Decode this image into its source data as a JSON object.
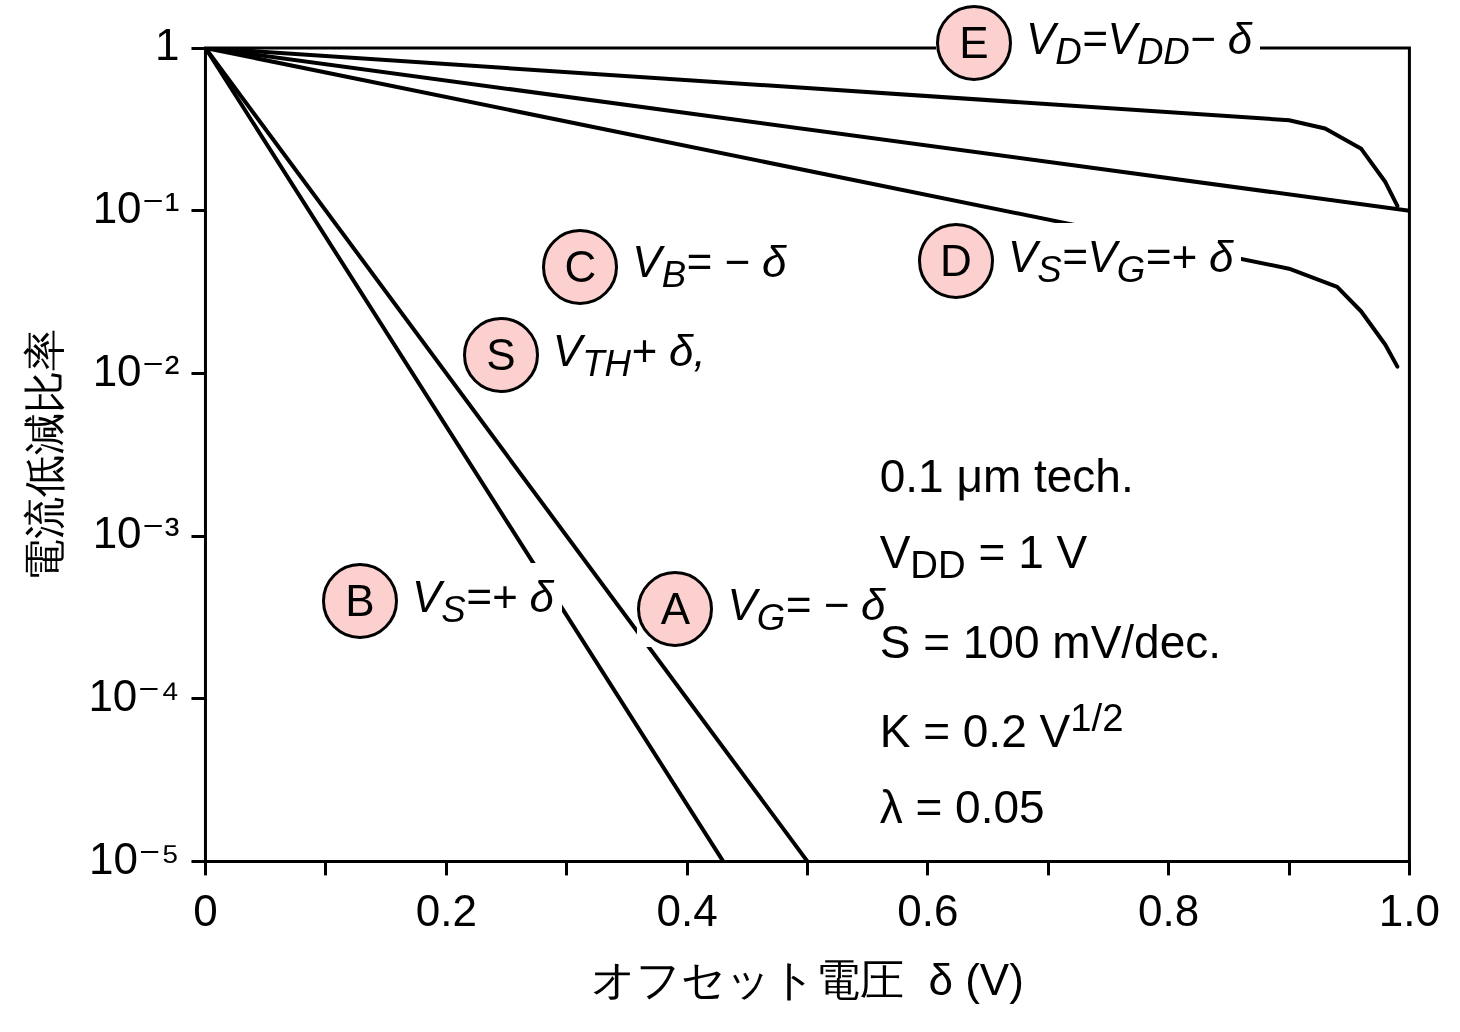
{
  "chart_data": {
    "type": "line",
    "xlabel": "オフセット電圧  δ (V)",
    "ylabel": "電流低減比率",
    "xlim": [
      0,
      1.0
    ],
    "ylim": [
      1e-05,
      1
    ],
    "log": "y",
    "grid": false,
    "legend": false,
    "marker": "none",
    "line_style": "solid",
    "xticks": [
      0,
      {
        "value": 0.1,
        "label": null
      },
      0.2,
      {
        "value": 0.3,
        "label": null
      },
      0.4,
      {
        "value": 0.5,
        "label": null
      },
      0.6,
      {
        "value": 0.7,
        "label": null
      },
      0.8,
      {
        "value": 0.9,
        "label": null
      },
      {
        "value": 1.0,
        "label": "1.0"
      }
    ],
    "yticks": [
      1,
      {
        "value": 0.1,
        "label": "10⁻¹"
      },
      {
        "value": 0.01,
        "label": "10⁻²"
      },
      {
        "value": 0.001,
        "label": "10⁻³"
      },
      {
        "value": 0.0001,
        "label": "10⁻⁴"
      },
      {
        "value": 1e-05,
        "label": "10⁻⁵"
      }
    ],
    "series": [
      {
        "color": "#000000",
        "x": [
          0,
          0.9,
          0.93,
          0.96,
          0.98,
          0.99
        ],
        "values": [
          1,
          0.36,
          0.32,
          0.24,
          0.15,
          0.107
        ]
      },
      {
        "color": "#000000",
        "x": [
          0,
          1.0
        ],
        "values": [
          1,
          0.1
        ]
      },
      {
        "color": "#000000",
        "x": [
          0,
          0.9,
          0.94,
          0.96,
          0.98,
          0.99
        ],
        "values": [
          1,
          0.044,
          0.034,
          0.024,
          0.015,
          0.011
        ]
      },
      {
        "color": "#000000",
        "x": [
          0,
          0.5
        ],
        "values": [
          1,
          1e-05
        ]
      },
      {
        "color": "#000000",
        "x": [
          0,
          0.43
        ],
        "values": [
          1,
          1e-05
        ]
      }
    ],
    "annotations": [
      "E V$_{D}$=V$_{DD}$− δ",
      "C V$_{B}$= − δ",
      "D V$_{S}$=V$_{G}$=+ δ",
      "S V$_{TH}$+ δ,",
      "A V$_{G}$= − δ",
      "B V$_{S}$=+ δ",
      "0.1  μm tech.",
      "V$_{DD}$ = 1 V",
      "S = 100 mV/dec.",
      "K = 0.2 V$^{1/2}$",
      "λ = 0.05"
    ]
  }
}
